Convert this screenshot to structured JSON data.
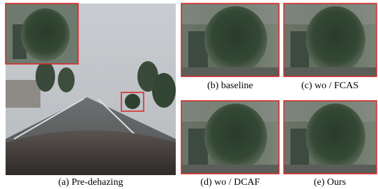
{
  "panels": [
    {
      "caption": "(a) Pre-dehazing"
    },
    {
      "caption": "(b) baseline"
    },
    {
      "caption": "(c) wo / FCAS"
    },
    {
      "caption": "(d) wo / DCAF"
    },
    {
      "caption": "(e) Ours"
    }
  ]
}
